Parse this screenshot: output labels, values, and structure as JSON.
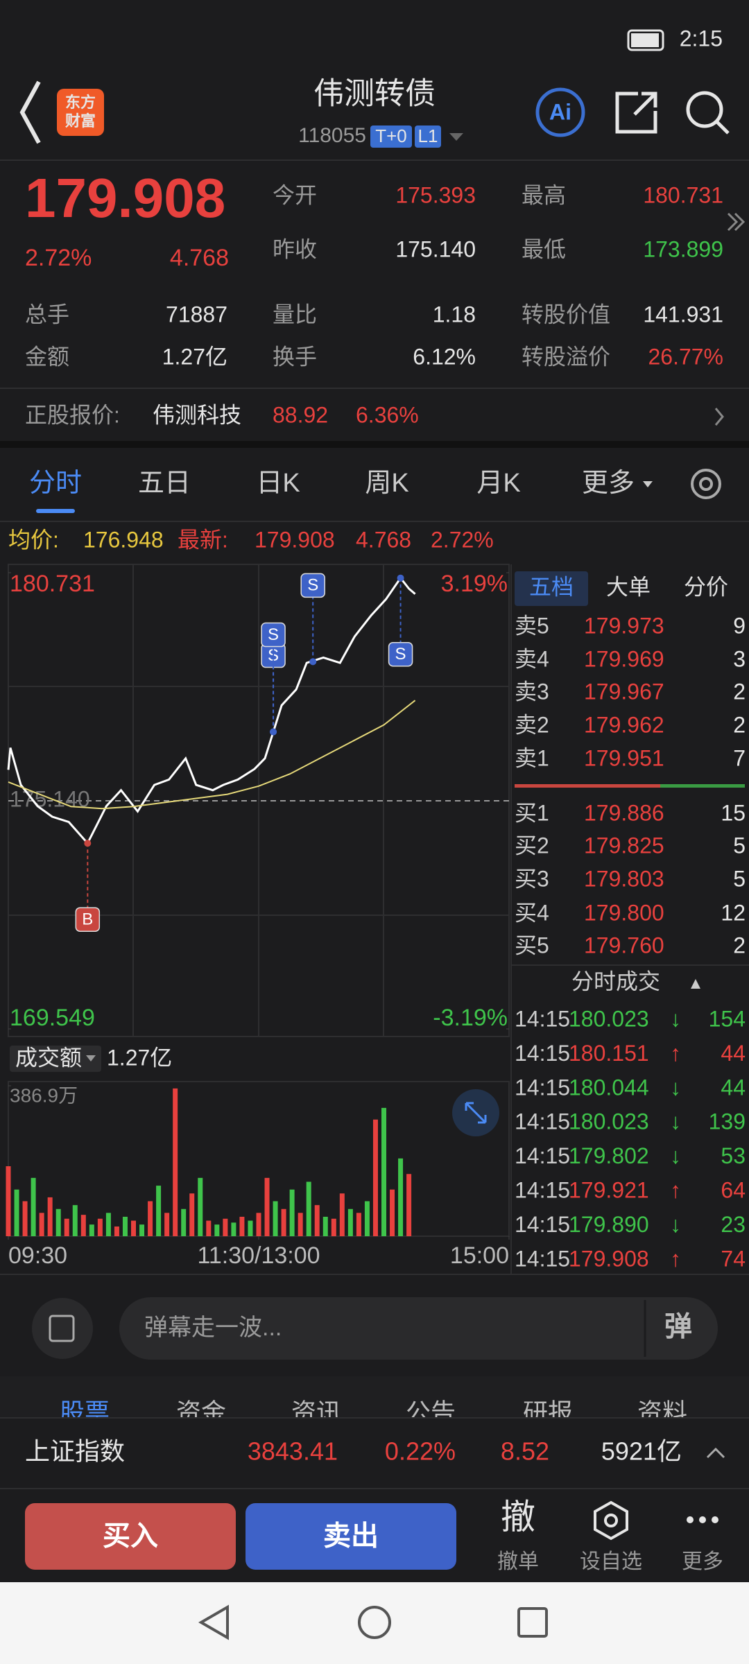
{
  "status_bar": {
    "time": "2:15"
  },
  "header": {
    "logo": [
      "东方",
      "财富"
    ],
    "title": "伟测转债",
    "code": "118055",
    "tags": [
      "T+0",
      "L1"
    ],
    "ai": "Ai"
  },
  "quote": {
    "price": "179.908",
    "change_pct": "2.72%",
    "change": "4.768",
    "open_label": "今开",
    "open": "175.393",
    "high_label": "最高",
    "high": "180.731",
    "prev_label": "昨收",
    "prev": "175.140",
    "low_label": "最低",
    "low": "173.899",
    "volume_label": "总手",
    "volume": "71887",
    "ratio_label": "量比",
    "ratio": "1.18",
    "conv_value_label": "转股价值",
    "conv_value": "141.931",
    "amount_label": "金额",
    "amount": "1.27亿",
    "turnover_label": "换手",
    "turnover": "6.12%",
    "premium_label": "转股溢价",
    "premium": "26.77%"
  },
  "stock": {
    "label": "正股报价:",
    "name": "伟测科技",
    "price": "88.92",
    "change_pct": "6.36%"
  },
  "tabs": [
    "分时",
    "五日",
    "日K",
    "周K",
    "月K",
    "更多"
  ],
  "info_line": {
    "avg_label": "均价:",
    "avg": "176.948",
    "last_label": "最新:",
    "last": "179.908",
    "change": "4.768",
    "change_pct": "2.72%"
  },
  "chart_data": [
    {
      "type": "line",
      "xlim": [
        0,
        240
      ],
      "ylim": [
        169.549,
        180.731
      ],
      "yticks": [
        169.549,
        180.731
      ],
      "y2lim": [
        -3.19,
        3.19
      ],
      "y2ticks": [
        {
          "value": -3.19,
          "label": "-3.19%"
        },
        {
          "value": 3.19,
          "label": "3.19%"
        }
      ],
      "prev_close": {
        "value": 175.14,
        "label": "175.140"
      },
      "series": [
        {
          "color": "#ffffff",
          "x": [
            0,
            1,
            6,
            14,
            21,
            29,
            38,
            47,
            54,
            62,
            70,
            77,
            85,
            90,
            98,
            103,
            110,
            118,
            123,
            127,
            131,
            138,
            143,
            151,
            159,
            166,
            174,
            181,
            188,
            192,
            195
          ],
          "values": [
            175.9,
            176.44,
            175.53,
            175.01,
            174.75,
            174.62,
            174.1,
            175.01,
            175.4,
            174.88,
            175.53,
            175.66,
            176.18,
            175.53,
            175.4,
            175.53,
            175.66,
            175.92,
            176.18,
            176.83,
            177.48,
            177.87,
            178.52,
            178.65,
            178.52,
            179.17,
            179.69,
            180.08,
            180.6,
            180.34,
            180.21
          ]
        },
        {
          "color": "#e6d97a",
          "x": [
            0,
            15,
            30,
            45,
            60,
            75,
            90,
            105,
            120,
            135,
            150,
            165,
            180,
            195
          ],
          "values": [
            175.6,
            175.3,
            175.0,
            174.95,
            175.0,
            175.1,
            175.2,
            175.3,
            175.5,
            175.8,
            176.2,
            176.6,
            177.0,
            177.6
          ]
        }
      ],
      "markers": [
        {
          "label": "B",
          "x": 38,
          "y": 174.1
        },
        {
          "label": "S",
          "x": 127,
          "y": 176.83
        },
        {
          "label": "S",
          "x": 127,
          "y": 176.83
        },
        {
          "label": "S",
          "x": 146,
          "y": 178.55
        },
        {
          "label": "S",
          "x": 188,
          "y": 180.6
        }
      ]
    },
    {
      "type": "bar",
      "title": "成交额",
      "total": "1.27亿",
      "xlim": [
        0,
        240
      ],
      "xticks": [
        {
          "value": 0,
          "label": "09:30"
        },
        {
          "value": 120,
          "label": "11:30/13:00"
        },
        {
          "value": 240,
          "label": "15:00"
        }
      ],
      "ylim": [
        0,
        386.9
      ],
      "yticks": [
        {
          "value": 386.9,
          "label": "386.9万"
        }
      ],
      "x": [
        0,
        4,
        8,
        12,
        16,
        20,
        24,
        28,
        32,
        36,
        40,
        44,
        48,
        52,
        56,
        60,
        64,
        68,
        72,
        76,
        80,
        84,
        88,
        92,
        96,
        100,
        104,
        108,
        112,
        116,
        120,
        124,
        128,
        132,
        136,
        140,
        144,
        148,
        152,
        156,
        160,
        164,
        168,
        172,
        176,
        180,
        184,
        188,
        192
      ],
      "values": [
        180,
        120,
        90,
        150,
        60,
        100,
        70,
        45,
        80,
        55,
        30,
        45,
        60,
        25,
        50,
        40,
        30,
        90,
        130,
        60,
        380,
        70,
        110,
        150,
        40,
        30,
        45,
        35,
        50,
        40,
        60,
        150,
        90,
        70,
        120,
        60,
        140,
        80,
        50,
        45,
        110,
        70,
        60,
        90,
        300,
        330,
        120,
        200,
        160
      ],
      "colors": [
        "#e8413e",
        "#3fc44b",
        "#e8413e",
        "#3fc44b",
        "#e8413e",
        "#e8413e",
        "#3fc44b",
        "#e8413e",
        "#3fc44b",
        "#e8413e",
        "#3fc44b",
        "#e8413e",
        "#3fc44b",
        "#e8413e",
        "#3fc44b",
        "#e8413e",
        "#3fc44b",
        "#e8413e",
        "#3fc44b",
        "#e8413e",
        "#e8413e",
        "#3fc44b",
        "#e8413e",
        "#3fc44b",
        "#e8413e",
        "#3fc44b",
        "#e8413e",
        "#3fc44b",
        "#e8413e",
        "#3fc44b",
        "#e8413e",
        "#e8413e",
        "#3fc44b",
        "#e8413e",
        "#3fc44b",
        "#e8413e",
        "#3fc44b",
        "#e8413e",
        "#3fc44b",
        "#e8413e",
        "#e8413e",
        "#3fc44b",
        "#e8413e",
        "#3fc44b",
        "#e8413e",
        "#3fc44b",
        "#e8413e",
        "#3fc44b",
        "#e8413e"
      ]
    }
  ],
  "order_book": {
    "tabs": [
      "五档",
      "大单",
      "分价"
    ],
    "asks": [
      [
        "卖5",
        "179.973",
        "9"
      ],
      [
        "卖4",
        "179.969",
        "3"
      ],
      [
        "卖3",
        "179.967",
        "2"
      ],
      [
        "卖2",
        "179.962",
        "2"
      ],
      [
        "卖1",
        "179.951",
        "7"
      ]
    ],
    "bids": [
      [
        "买1",
        "179.886",
        "15"
      ],
      [
        "买2",
        "179.825",
        "5"
      ],
      [
        "买3",
        "179.803",
        "5"
      ],
      [
        "买4",
        "179.800",
        "12"
      ],
      [
        "买5",
        "179.760",
        "2"
      ]
    ]
  },
  "trades": {
    "title": "分时成交",
    "rows": [
      [
        "14:15",
        "180.023",
        "↓",
        "154"
      ],
      [
        "14:15",
        "180.151",
        "↑",
        "44"
      ],
      [
        "14:15",
        "180.044",
        "↓",
        "44"
      ],
      [
        "14:15",
        "180.023",
        "↓",
        "139"
      ],
      [
        "14:15",
        "179.802",
        "↓",
        "53"
      ],
      [
        "14:15",
        "179.921",
        "↑",
        "64"
      ],
      [
        "14:15",
        "179.890",
        "↓",
        "23"
      ],
      [
        "14:15",
        "179.908",
        "↑",
        "74"
      ]
    ]
  },
  "danmaku": {
    "placeholder": "弹幕走一波...",
    "button": "弹"
  },
  "bottom_tabs": [
    "股票",
    "资金",
    "资讯",
    "公告",
    "研报",
    "资料"
  ],
  "index_bar": {
    "name": "上证指数",
    "price": "3843.41",
    "change_pct": "0.22%",
    "change": "8.52",
    "amount": "5921亿"
  },
  "actions": {
    "buy": "买入",
    "sell": "卖出",
    "cancel_icon": "撤",
    "cancel": "撤单",
    "watch": "设自选",
    "more": "更多"
  }
}
